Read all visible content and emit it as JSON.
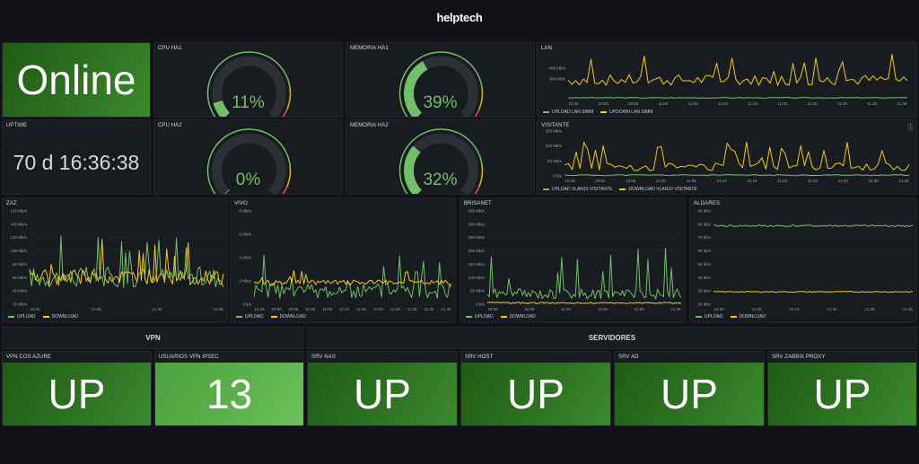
{
  "brand": {
    "logo": "helptech"
  },
  "colors": {
    "green": "#73bf69",
    "yellow": "#f2cc0c",
    "bg": "#111217",
    "panel": "#181b1f"
  },
  "status": {
    "value": "Online"
  },
  "uptime": {
    "title": "UPTIME",
    "value": "70 d 16:36:38"
  },
  "gauges": [
    {
      "title": "CPU HA1",
      "value": 11,
      "label": "11%"
    },
    {
      "title": "MEMORIA HA1",
      "value": 39,
      "label": "39%"
    },
    {
      "title": "CPU HA2",
      "value": 0,
      "label": "0%"
    },
    {
      "title": "MEMORIA HA2",
      "value": 32,
      "label": "32%"
    }
  ],
  "charts": {
    "lan": {
      "title": "LAN",
      "yticks": [
        "400 Mb/s",
        "300 Mb/s"
      ],
      "xticks": [
        "10:45",
        "10:50",
        "10:55",
        "11:00",
        "11:05",
        "11:10",
        "11:15",
        "11:20",
        "11:25",
        "11:30",
        "11:35",
        "11:40"
      ],
      "legend": [
        "UPLOAD LAN SIMM",
        "UPDOWN LAN SIMM"
      ]
    },
    "visitante": {
      "title": "VISITANTE",
      "yticks": [
        "150 Mb/s",
        "100 Mb/s",
        "50 Mb/s",
        "0 b/s"
      ],
      "xticks": [
        "10:45",
        "10:50",
        "10:55",
        "11:00",
        "11:05",
        "11:10",
        "11:15",
        "11:20",
        "11:25",
        "11:30",
        "11:35",
        "11:40"
      ],
      "legend": [
        "UPLOAD VLAN10 VISITANTE",
        "DOWNLOAD VLAN10 VISITANTE"
      ]
    },
    "zaz": {
      "title": "ZAZ",
      "yticks": [
        "160 Mb/s",
        "140 Mb/s",
        "120 Mb/s",
        "100 Mb/s",
        "80 Mb/s",
        "60 Mb/s",
        "40 Mb/s",
        "20 Mb/s"
      ],
      "xticks": [
        "10:30",
        "11:00",
        "11:30",
        "11:40"
      ],
      "legend": [
        "UPLOAD",
        "DOWNLOAD"
      ]
    },
    "vivo": {
      "title": "VIVO",
      "yticks": [
        "8 Mb/s",
        "6 Mb/s",
        "4 Mb/s",
        "2 Mb/s",
        "0 b/s"
      ],
      "xticks": [
        "10:45",
        "10:50",
        "10:55",
        "11:00",
        "11:05",
        "11:10",
        "11:15",
        "11:20",
        "11:25",
        "11:30",
        "11:35",
        "11:40"
      ],
      "legend": [
        "UPLOAD",
        "DOWNLOAD"
      ]
    },
    "brisanet": {
      "title": "BRISANET",
      "yticks": [
        "350 Mb/s",
        "300 Mb/s",
        "250 Mb/s",
        "200 Mb/s",
        "150 Mb/s",
        "100 Mb/s",
        "50 Mb/s",
        "0 b/s"
      ],
      "xticks": [
        "10:50",
        "11:00",
        "11:10",
        "11:20",
        "11:30",
        "11:40"
      ],
      "legend": [
        "UPLOAD",
        "DOWNLOAD"
      ]
    },
    "algares": {
      "title": "ALGARES",
      "yticks": [
        "90 kb/s",
        "80 kb/s",
        "70 kb/s",
        "60 kb/s",
        "50 kb/s",
        "40 kb/s",
        "30 kb/s",
        "20 kb/s"
      ],
      "xticks": [
        "10:50",
        "11:00",
        "11:10",
        "11:20",
        "11:30",
        "11:40"
      ],
      "legend": [
        "UPLOAD",
        "DOWNLOAD"
      ]
    }
  },
  "sections": {
    "vpn": "VPN",
    "servidores": "SERVIDORES"
  },
  "tiles": [
    {
      "title": "VPN COS AZURE",
      "value": "UP"
    },
    {
      "title": "USUARIOS VPN IPsec",
      "value": "13"
    },
    {
      "title": "SRV NAS",
      "value": "UP"
    },
    {
      "title": "SRV HOST",
      "value": "UP"
    },
    {
      "title": "SRV AD",
      "value": "UP"
    },
    {
      "title": "SRV ZABBIX PROXY",
      "value": "UP"
    }
  ]
}
